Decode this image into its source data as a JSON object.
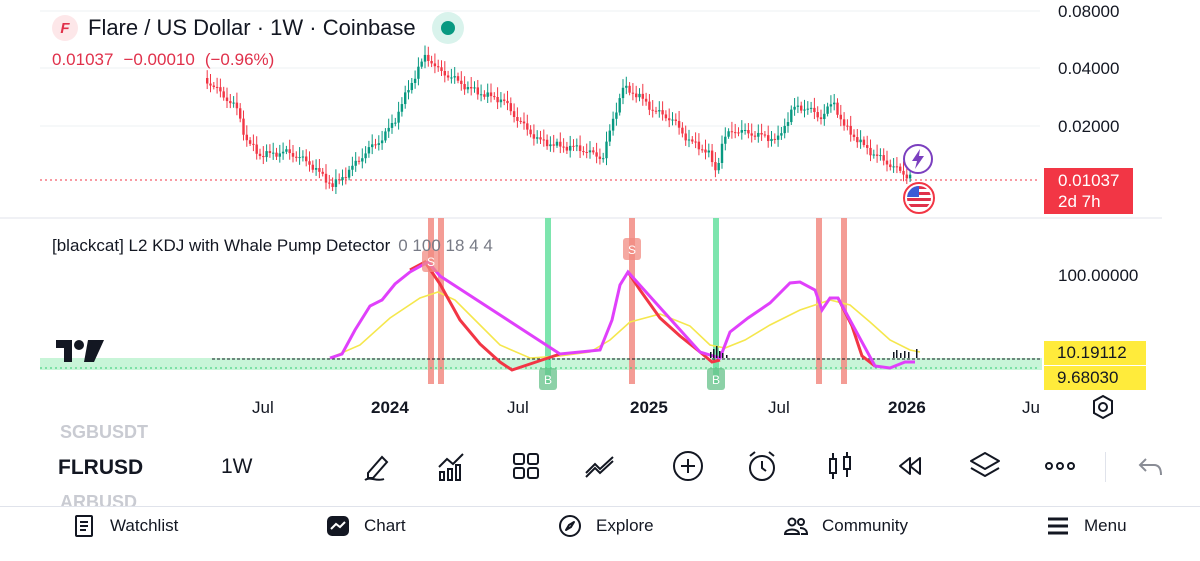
{
  "header": {
    "title": "Flare / US Dollar · 1W · Coinbase",
    "logo_glyph": "F",
    "last_price": "0.01037",
    "change": "−0.00010",
    "change_pct": "(−0.96%)"
  },
  "price_axis": {
    "labels": [
      "0.08000",
      "0.04000",
      "0.02000"
    ],
    "current_price": "0.01037",
    "countdown": "2d 7h"
  },
  "indicator": {
    "name": "[blackcat] L2 KDJ with Whale Pump Detector",
    "params": "0 100 18 4 4",
    "axis_label": "100.00000",
    "value_yellow": "10.19112",
    "value_k": "9.68030",
    "sell_marker": "S",
    "buy_marker": "B"
  },
  "time_axis": {
    "labels": [
      "Jul",
      "2024",
      "Jul",
      "2025",
      "Jul",
      "2026",
      "Ju"
    ],
    "bold": [
      false,
      true,
      false,
      true,
      false,
      true,
      false
    ]
  },
  "toolbar": {
    "symbol_prev": "SGBUSDT",
    "symbol": "FLRUSD",
    "symbol_next": "ARBUSD",
    "interval": "1W",
    "icons": [
      "draw-icon",
      "indicators-icon",
      "layouts-icon",
      "compare-icon",
      "add-icon",
      "alert-icon",
      "chart-type-icon",
      "replay-icon",
      "layers-icon",
      "more-icon",
      "undo-icon"
    ]
  },
  "nav": {
    "items": [
      {
        "label": "Watchlist",
        "icon": "watchlist-icon"
      },
      {
        "label": "Chart",
        "icon": "chart-icon"
      },
      {
        "label": "Explore",
        "icon": "explore-icon"
      },
      {
        "label": "Community",
        "icon": "community-icon"
      },
      {
        "label": "Menu",
        "icon": "menu-icon"
      }
    ]
  },
  "colors": {
    "up": "#089981",
    "down": "#f23645",
    "k_line": "#e040fb",
    "d_line": "#f5e74d",
    "sell_band": "#f28b82",
    "buy_band": "#66e0a0",
    "yellow_tag": "#ffeb3b"
  }
}
